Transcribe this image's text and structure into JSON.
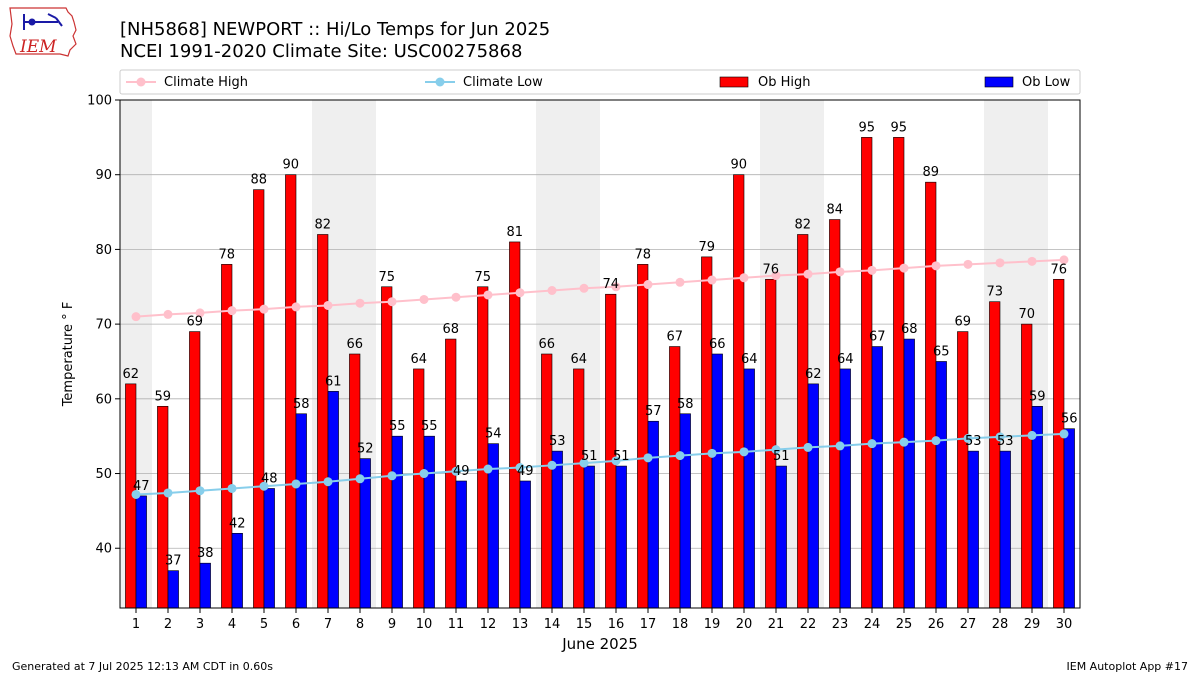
{
  "header": {
    "title_line1": "[NH5868] NEWPORT :: Hi/Lo Temps for Jun 2025",
    "title_line2": "NCEI 1991-2020 Climate Site: USC00275868",
    "logo_text": "IEM"
  },
  "footer": {
    "generated": "Generated at 7 Jul 2025 12:13 AM CDT in 0.60s",
    "app": "IEM Autoplot App #17"
  },
  "chart_data": {
    "type": "bar",
    "xlabel": "June 2025",
    "ylabel": "Temperature ° F",
    "ylim": [
      32,
      100
    ],
    "yticks": [
      40,
      50,
      60,
      70,
      80,
      90,
      100
    ],
    "grid": "horizontal",
    "legend_placement": "top",
    "categories": [
      "1",
      "2",
      "3",
      "4",
      "5",
      "6",
      "7",
      "8",
      "9",
      "10",
      "11",
      "12",
      "13",
      "14",
      "15",
      "16",
      "17",
      "18",
      "19",
      "20",
      "21",
      "22",
      "23",
      "24",
      "25",
      "26",
      "27",
      "28",
      "29",
      "30"
    ],
    "weekend_shading": [
      [
        1,
        1
      ],
      [
        7,
        8
      ],
      [
        14,
        15
      ],
      [
        21,
        22
      ],
      [
        28,
        29
      ]
    ],
    "series": [
      {
        "name": "Climate High",
        "kind": "line",
        "color": "#ffc0cb",
        "values": [
          71.0,
          71.3,
          71.5,
          71.8,
          72.0,
          72.3,
          72.5,
          72.8,
          73.0,
          73.3,
          73.6,
          73.9,
          74.2,
          74.5,
          74.8,
          75.0,
          75.3,
          75.6,
          75.9,
          76.2,
          76.5,
          76.7,
          77.0,
          77.2,
          77.5,
          77.8,
          78.0,
          78.2,
          78.4,
          78.6
        ]
      },
      {
        "name": "Climate Low",
        "kind": "line",
        "color": "#87ceeb",
        "values": [
          47.2,
          47.4,
          47.7,
          48.0,
          48.3,
          48.6,
          48.9,
          49.3,
          49.7,
          50.0,
          50.3,
          50.6,
          50.8,
          51.1,
          51.4,
          51.7,
          52.1,
          52.4,
          52.7,
          52.9,
          53.2,
          53.5,
          53.7,
          54.0,
          54.2,
          54.4,
          54.7,
          54.9,
          55.1,
          55.3
        ]
      },
      {
        "name": "Ob High",
        "kind": "bar",
        "color": "#ff0000",
        "values": [
          62,
          59,
          69,
          78,
          88,
          90,
          82,
          66,
          75,
          64,
          68,
          75,
          81,
          66,
          64,
          74,
          78,
          67,
          79,
          90,
          76,
          82,
          84,
          95,
          95,
          89,
          69,
          73,
          70,
          76
        ]
      },
      {
        "name": "Ob Low",
        "kind": "bar",
        "color": "#0000ff",
        "values": [
          47,
          37,
          38,
          42,
          48,
          58,
          61,
          52,
          55,
          55,
          49,
          54,
          49,
          53,
          51,
          51,
          57,
          58,
          66,
          64,
          51,
          62,
          64,
          67,
          68,
          65,
          53,
          53,
          59,
          56
        ]
      }
    ]
  }
}
